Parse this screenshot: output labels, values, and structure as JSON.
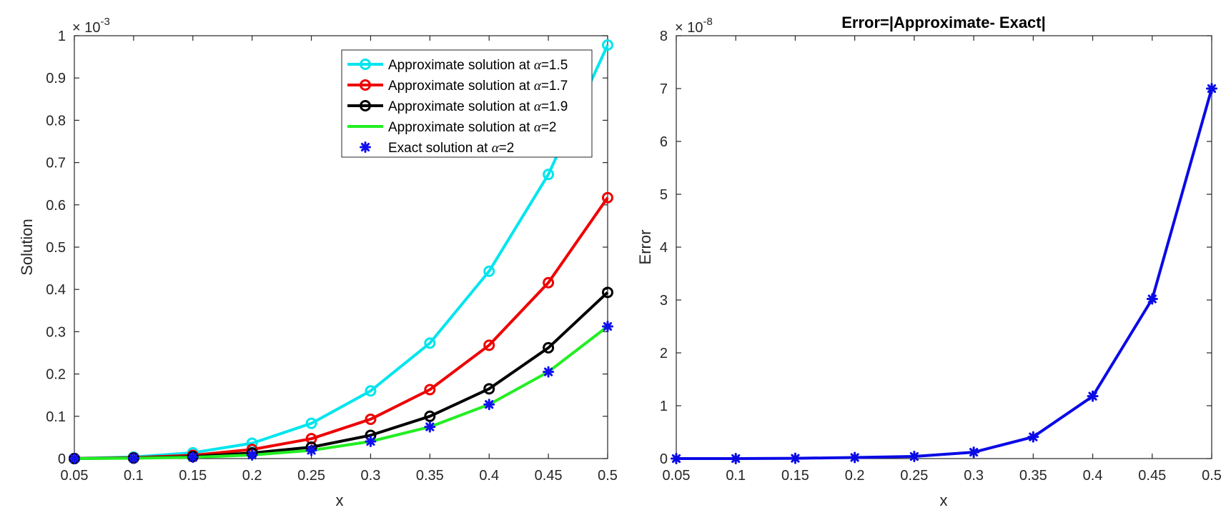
{
  "chart_data": [
    {
      "type": "line",
      "title": "",
      "xlabel": "x",
      "ylabel": "Solution",
      "xlim": [
        0.05,
        0.5
      ],
      "ylim": [
        0,
        1
      ],
      "y_multiplier_label": "× 10^-3",
      "y_multiplier_base": "× 10",
      "y_multiplier_exp": "-3",
      "x_ticks": [
        "0.05",
        "0.1",
        "0.15",
        "0.2",
        "0.25",
        "0.3",
        "0.35",
        "0.4",
        "0.45",
        "0.5"
      ],
      "y_ticks": [
        "0",
        "0.1",
        "0.2",
        "0.3",
        "0.4",
        "0.5",
        "0.6",
        "0.7",
        "0.8",
        "0.9",
        "1"
      ],
      "x": [
        0.05,
        0.1,
        0.15,
        0.2,
        0.25,
        0.3,
        0.35,
        0.4,
        0.45,
        0.5
      ],
      "legend_position": "top-right",
      "series": [
        {
          "name": "Approximate solution at α=1.5",
          "legend_prefix": "Approximate solution at ",
          "legend_alpha": "α",
          "legend_suffix": "=1.5",
          "color": "#00E5EE",
          "marker": "circle",
          "line": true,
          "values": [
            0.0002,
            0.0037,
            0.0138,
            0.0364,
            0.0833,
            0.16,
            0.273,
            0.443,
            0.672,
            0.978
          ]
        },
        {
          "name": "Approximate solution at α=1.7",
          "legend_prefix": "Approximate solution at ",
          "legend_alpha": "α",
          "legend_suffix": "=1.7",
          "color": "#EE0000",
          "marker": "circle",
          "line": true,
          "values": [
            0.0001,
            0.002,
            0.0078,
            0.0215,
            0.047,
            0.093,
            0.163,
            0.268,
            0.416,
            0.617
          ]
        },
        {
          "name": "Approximate solution at α=1.9",
          "legend_prefix": "Approximate solution at ",
          "legend_alpha": "α",
          "legend_suffix": "=1.9",
          "color": "#000000",
          "marker": "circle",
          "line": true,
          "values": [
            0.0,
            0.0012,
            0.0047,
            0.0132,
            0.027,
            0.055,
            0.1,
            0.165,
            0.262,
            0.393
          ]
        },
        {
          "name": "Approximate solution at α=2",
          "legend_prefix": "Approximate solution at ",
          "legend_alpha": "α",
          "legend_suffix": "=2",
          "color": "#22EE22",
          "marker": "none",
          "line": true,
          "values": [
            0.0,
            0.0009,
            0.0031,
            0.0084,
            0.0195,
            0.0405,
            0.075,
            0.128,
            0.205,
            0.3125
          ]
        },
        {
          "name": "Exact solution at α=2",
          "legend_prefix": "Exact solution at ",
          "legend_alpha": "α",
          "legend_suffix": "=2",
          "color": "#1010EE",
          "marker": "asterisk",
          "line": false,
          "values": [
            0.0,
            0.0009,
            0.0031,
            0.0084,
            0.0195,
            0.0405,
            0.075,
            0.128,
            0.205,
            0.3125
          ]
        }
      ]
    },
    {
      "type": "line",
      "title": "Error=|Approximate- Exact|",
      "xlabel": "x",
      "ylabel": "Error",
      "xlim": [
        0.05,
        0.5
      ],
      "ylim": [
        0,
        8
      ],
      "y_multiplier_label": "× 10^-8",
      "y_multiplier_base": "× 10",
      "y_multiplier_exp": "-8",
      "x_ticks": [
        "0.05",
        "0.1",
        "0.15",
        "0.2",
        "0.25",
        "0.3",
        "0.35",
        "0.4",
        "0.45",
        "0.5"
      ],
      "y_ticks": [
        "0",
        "1",
        "2",
        "3",
        "4",
        "5",
        "6",
        "7",
        "8"
      ],
      "x": [
        0.05,
        0.1,
        0.15,
        0.2,
        0.25,
        0.3,
        0.35,
        0.4,
        0.45,
        0.5
      ],
      "series": [
        {
          "name": "Error",
          "color": "#0A0AE6",
          "marker": "asterisk",
          "line": true,
          "values": [
            0.0,
            0.0,
            0.005,
            0.02,
            0.04,
            0.12,
            0.41,
            1.18,
            3.02,
            7.0
          ]
        }
      ]
    }
  ]
}
